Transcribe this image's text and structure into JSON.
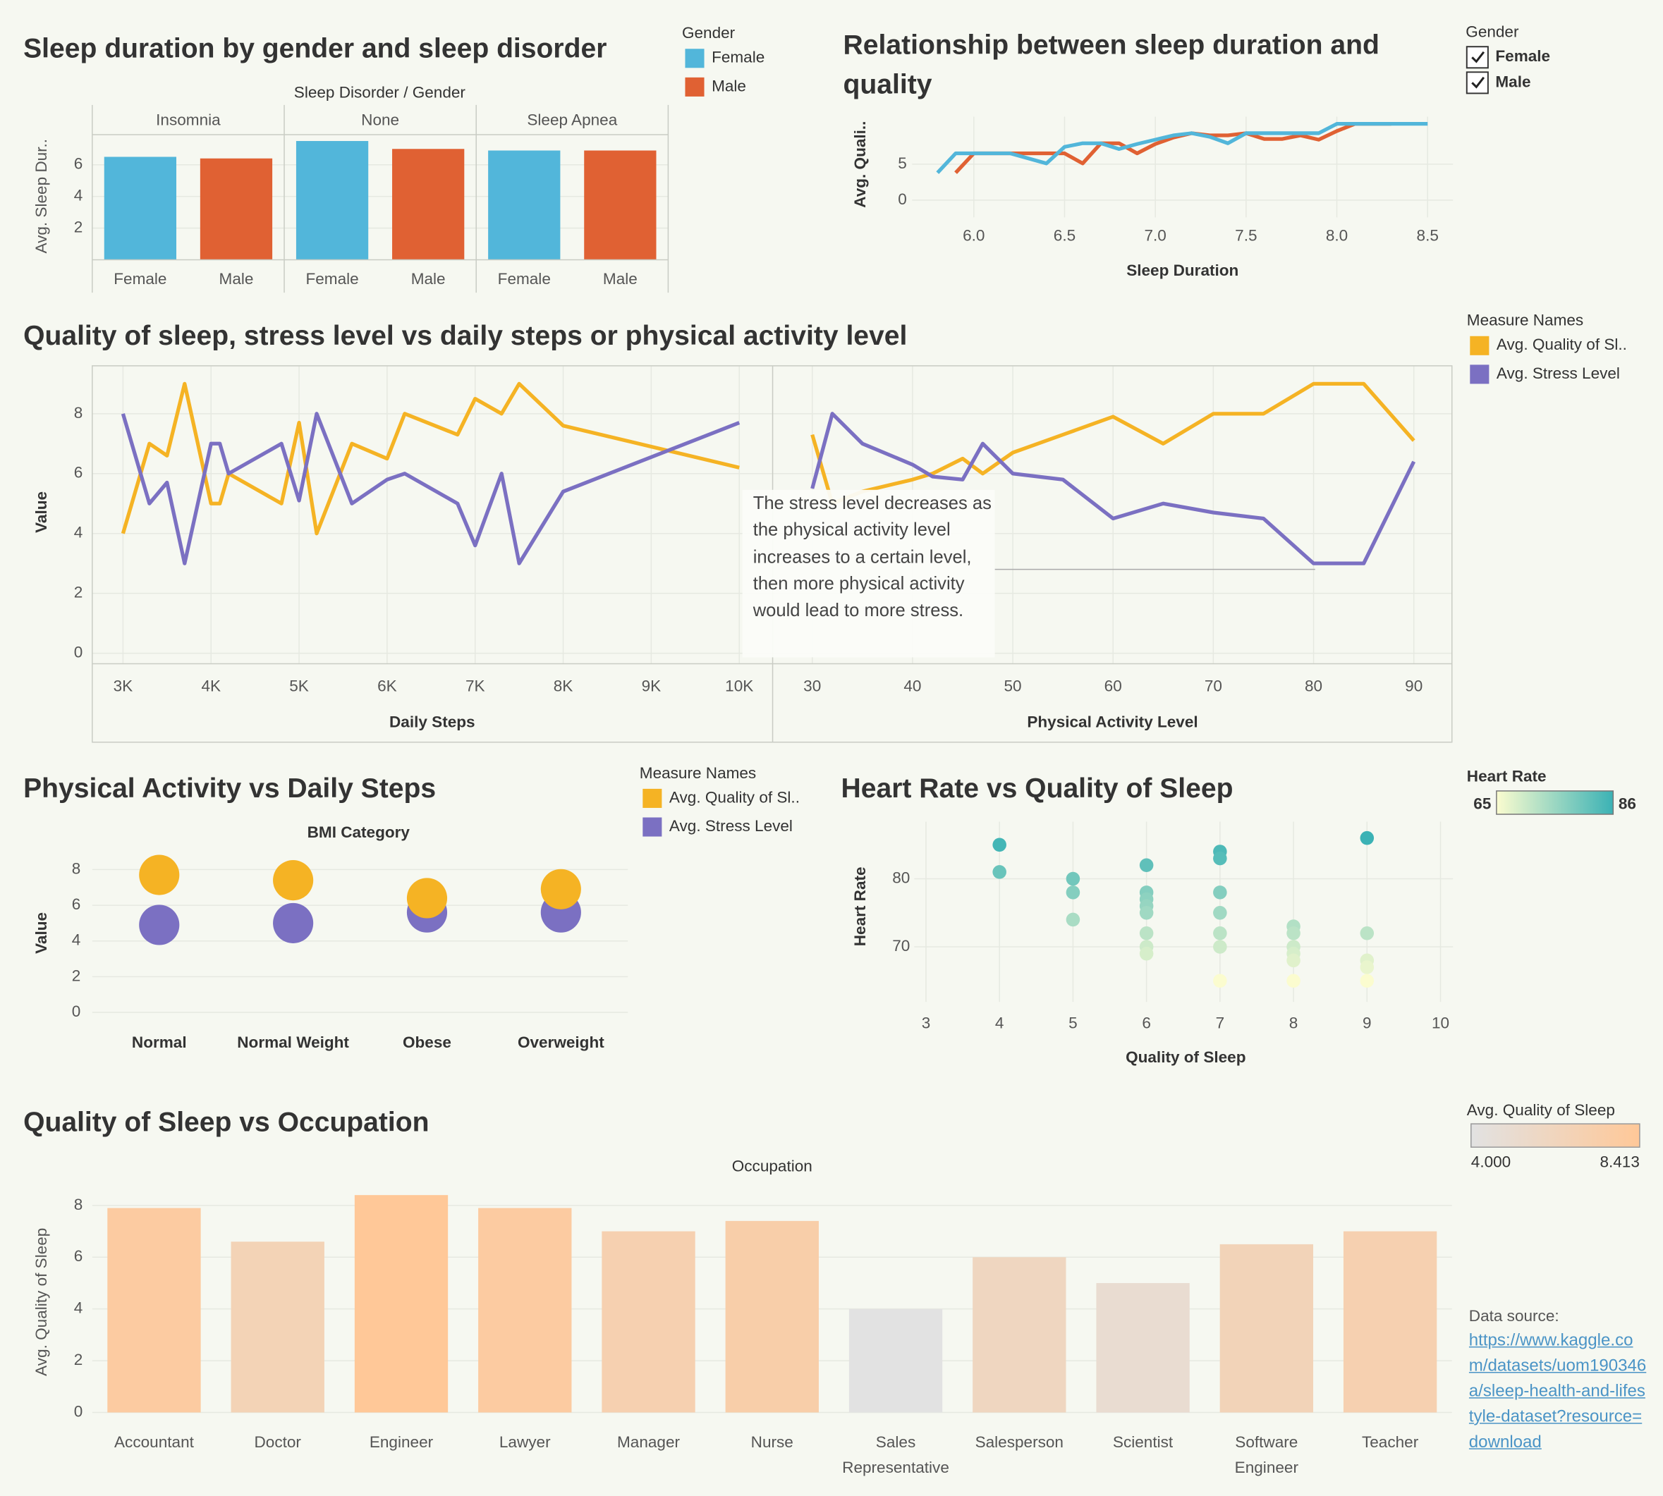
{
  "chart_data": [
    {
      "type": "bar",
      "title": "Sleep duration by gender and sleep disorder",
      "header": "Sleep Disorder / Gender",
      "ylabel": "Avg. Sleep Dur..",
      "categories": [
        "Insomnia",
        "None",
        "Sleep Apnea"
      ],
      "legend_title": "Gender",
      "series": [
        {
          "name": "Female",
          "color": "#52b6da",
          "values": [
            6.5,
            7.5,
            6.9
          ]
        },
        {
          "name": "Male",
          "color": "#e06133",
          "values": [
            6.4,
            7.0,
            6.9
          ]
        }
      ],
      "ylim": [
        0,
        7.9
      ],
      "yticks": [
        2,
        4,
        6
      ],
      "grid": true
    },
    {
      "type": "line",
      "title": "Relationship between sleep duration and quality",
      "xlabel": "Sleep Duration",
      "ylabel": "Avg. Quali..",
      "legend_title": "Gender",
      "legend_style": "checkbox",
      "series": [
        {
          "name": "Female",
          "color": "#52b6da",
          "x": [
            5.8,
            5.9,
            6.0,
            6.2,
            6.4,
            6.5,
            6.6,
            6.7,
            6.8,
            6.9,
            7.0,
            7.1,
            7.2,
            7.3,
            7.4,
            7.5,
            7.6,
            7.7,
            7.8,
            7.9,
            8.0,
            8.1,
            8.2,
            8.3,
            8.4,
            8.5
          ],
          "values": [
            3.8,
            6.5,
            6.5,
            6.5,
            5.1,
            7.4,
            7.9,
            7.9,
            7.1,
            7.8,
            8.4,
            9.0,
            9.3,
            8.8,
            7.9,
            9.3,
            9.3,
            9.3,
            9.3,
            9.3,
            10.6,
            10.6,
            10.6,
            10.6,
            10.6,
            10.6
          ]
        },
        {
          "name": "Male",
          "color": "#e06133",
          "x": [
            5.9,
            6.0,
            6.1,
            6.2,
            6.3,
            6.4,
            6.5,
            6.6,
            6.7,
            6.8,
            6.9,
            7.0,
            7.1,
            7.2,
            7.3,
            7.4,
            7.5,
            7.6,
            7.7,
            7.8,
            7.9,
            8.0,
            8.1,
            8.2,
            8.3
          ],
          "values": [
            3.8,
            6.5,
            6.5,
            6.5,
            6.5,
            6.5,
            6.5,
            5.1,
            7.9,
            7.9,
            6.5,
            7.8,
            8.7,
            9.3,
            9.0,
            9.0,
            9.3,
            8.5,
            8.5,
            9.0,
            8.4,
            9.6,
            10.6,
            10.6,
            10.6
          ]
        }
      ],
      "xlim": [
        5.66,
        8.64
      ],
      "xticks": [
        {
          "value": 6,
          "label": "6.0"
        },
        6.5,
        {
          "value": 7,
          "label": "7.0"
        },
        7.5,
        {
          "value": 8,
          "label": "8.0"
        },
        8.5
      ],
      "ylim": [
        -2.4,
        11.6
      ],
      "yticks": [
        0,
        5
      ],
      "grid": true
    },
    {
      "type": "line",
      "title": "Quality of sleep, stress level vs daily steps or physical activity level",
      "ylabel": "Value",
      "legend_title": "Measure Names",
      "series": [
        {
          "name": "Avg. Quality of Sl..",
          "color": "#f5b324"
        },
        {
          "name": "Avg. Stress Level",
          "color": "#7b70c2"
        }
      ],
      "ylim": [
        -0.35,
        9.6
      ],
      "yticks": [
        0,
        2,
        4,
        6,
        8
      ],
      "grid": true,
      "panes": [
        {
          "xlabel": "Daily Steps",
          "xlim": [
            2651,
            10373
          ],
          "xticks": [
            {
              "value": 3000,
              "label": "3K"
            },
            {
              "value": 4000,
              "label": "4K"
            },
            {
              "value": 5000,
              "label": "5K"
            },
            {
              "value": 6000,
              "label": "6K"
            },
            {
              "value": 7000,
              "label": "7K"
            },
            {
              "value": 8000,
              "label": "8K"
            },
            {
              "value": 9000,
              "label": "9K"
            },
            {
              "value": 10000,
              "label": "10K"
            }
          ],
          "x": [
            3000,
            3300,
            3500,
            3700,
            4000,
            4100,
            4200,
            4800,
            5000,
            5200,
            5600,
            6000,
            6200,
            6800,
            7000,
            7300,
            7500,
            8000,
            10000
          ],
          "series": [
            {
              "values": [
                4,
                7,
                6.6,
                9,
                5,
                5,
                6,
                5,
                7.7,
                4,
                7,
                6.5,
                8,
                7.3,
                8.5,
                8,
                9,
                7.6,
                6.2
              ]
            },
            {
              "values": [
                8,
                5,
                5.7,
                3,
                7,
                7,
                6,
                7,
                5.1,
                8,
                5,
                5.8,
                6,
                5,
                3.6,
                6,
                3,
                5.4,
                7.7
              ]
            }
          ]
        },
        {
          "xlabel": "Physical Activity Level",
          "xlim": [
            26.1,
            93.8
          ],
          "xticks": [
            30,
            40,
            50,
            60,
            70,
            80,
            90
          ],
          "x": [
            30,
            32,
            35,
            40,
            42,
            45,
            47,
            50,
            55,
            60,
            65,
            70,
            75,
            80,
            85,
            90
          ],
          "series": [
            {
              "values": [
                7.3,
                5,
                5.4,
                5.8,
                6,
                6.5,
                6,
                6.7,
                7.3,
                7.9,
                7,
                8,
                8,
                9,
                9,
                7.1
              ]
            },
            {
              "values": [
                5.5,
                8,
                7,
                6.3,
                5.9,
                5.8,
                7,
                6,
                5.8,
                4.5,
                5,
                4.7,
                4.5,
                3,
                3,
                6.4
              ]
            }
          ]
        }
      ],
      "annotation": "The stress level decreases as the physical activity level increases to a certain level, then more physical activity would lead to more stress."
    },
    {
      "type": "dot",
      "title": "Physical Activity vs Daily Steps",
      "header": "BMI Category",
      "ylabel": "Value",
      "legend_title": "Measure Names",
      "categories": [
        "Normal",
        "Normal Weight",
        "Obese",
        "Overweight"
      ],
      "series": [
        {
          "name": "Avg. Quality of Sl..",
          "color": "#f5b324",
          "values": [
            7.7,
            7.4,
            6.4,
            6.9
          ]
        },
        {
          "name": "Avg. Stress Level",
          "color": "#7b70c2",
          "values": [
            4.9,
            5.0,
            5.6,
            5.6
          ]
        }
      ],
      "ylim": [
        -0.6,
        8.9
      ],
      "yticks": [
        0,
        2,
        4,
        6,
        8
      ],
      "grid": true
    },
    {
      "type": "scatter",
      "title": "Heart Rate vs Quality of Sleep",
      "xlabel": "Quality of Sleep",
      "ylabel": "Heart Rate",
      "x": [
        4,
        4,
        5,
        5,
        5,
        6,
        6,
        6,
        6,
        6,
        6,
        6,
        6,
        7,
        7,
        7,
        7,
        7,
        7,
        7,
        8,
        8,
        8,
        8,
        8,
        8,
        9,
        9,
        9,
        9,
        9
      ],
      "values": [
        85,
        81,
        80,
        78,
        74,
        82,
        78,
        77,
        76,
        75,
        72,
        70,
        69,
        84,
        83,
        78,
        75,
        72,
        70,
        65,
        73,
        72,
        70,
        69,
        68,
        65,
        86,
        72,
        68,
        67,
        65
      ],
      "colorscale": {
        "title": "Heart Rate",
        "range": [
          65,
          86
        ],
        "colors": [
          "#fbfccf",
          "#3bb2b5"
        ]
      },
      "xlim": [
        2.84,
        10.17
      ],
      "xticks": [
        3,
        4,
        5,
        6,
        7,
        8,
        9,
        10
      ],
      "ylim": [
        61.9,
        88.4
      ],
      "yticks": [
        70,
        80
      ],
      "grid": true
    },
    {
      "type": "bar",
      "title": "Quality of Sleep vs Occupation",
      "header": "Occupation",
      "ylabel": "Avg. Quality of Sleep",
      "categories": [
        "Accountant",
        "Doctor",
        "Engineer",
        "Lawyer",
        "Manager",
        "Nurse",
        "Sales Representative",
        "Salesperson",
        "Scientist",
        "Software Engineer",
        "Teacher"
      ],
      "values": [
        7.9,
        6.6,
        8.4,
        7.9,
        7.0,
        7.4,
        4.0,
        6.0,
        5.0,
        6.5,
        7.0
      ],
      "colorscale": {
        "title": "Avg. Quality of Sleep",
        "range": [
          {
            "value": 4,
            "label": "4.000"
          },
          {
            "value": 8.413,
            "label": "8.413"
          }
        ],
        "colors": [
          "#e2e2e2",
          "#ffc898"
        ]
      },
      "ylim": [
        -0.4,
        8.9
      ],
      "yticks": [
        0,
        2,
        4,
        6,
        8
      ],
      "grid": true
    }
  ],
  "data_source": {
    "label": "Data source:",
    "url": "https://www.kaggle.com/datasets/uom190346a/sleep-health-and-lifestyle-dataset?resource=download"
  }
}
